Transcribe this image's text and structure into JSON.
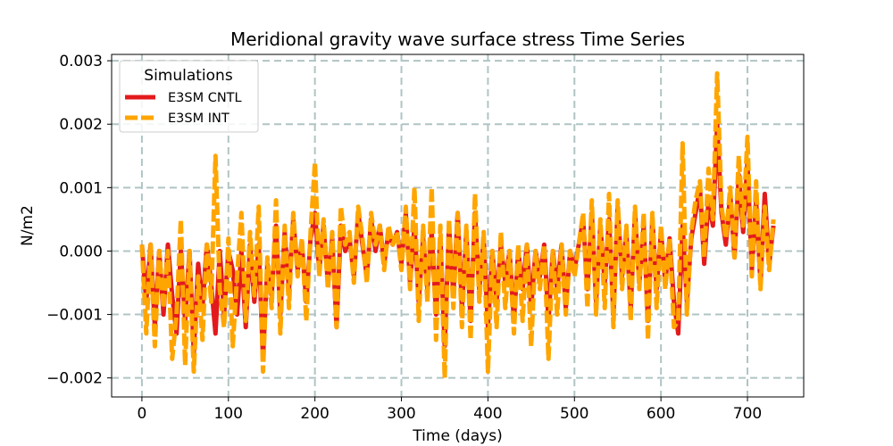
{
  "chart_data": {
    "type": "line",
    "title": "Meridional gravity wave surface stress Time Series",
    "xlabel": "Time (days)",
    "ylabel": "N/m2",
    "xlim": [
      -35,
      765
    ],
    "ylim": [
      -0.0023,
      0.0031
    ],
    "x_ticks": [
      0,
      100,
      200,
      300,
      400,
      500,
      600,
      700
    ],
    "x_tick_labels": [
      "0",
      "100",
      "200",
      "300",
      "400",
      "500",
      "600",
      "700"
    ],
    "y_ticks": [
      -0.002,
      -0.001,
      0.0,
      0.001,
      0.002,
      0.003
    ],
    "y_tick_labels": [
      "−0.002",
      "−0.001",
      "0.000",
      "0.001",
      "0.002",
      "0.003"
    ],
    "grid": true,
    "legend": {
      "title": "Simulations",
      "position": "top-left",
      "entries": [
        {
          "label": "E3SM CNTL",
          "color": "#e31a1c",
          "style": "solid"
        },
        {
          "label": "E3SM INT",
          "color": "#ffa500",
          "style": "dashed"
        }
      ]
    },
    "series": [
      {
        "name": "E3SM CNTL",
        "color": "#e31a1c",
        "style": "solid",
        "x": [
          0,
          5,
          10,
          15,
          20,
          25,
          30,
          35,
          40,
          45,
          50,
          55,
          60,
          65,
          70,
          75,
          80,
          85,
          90,
          95,
          100,
          105,
          110,
          115,
          120,
          125,
          130,
          135,
          140,
          145,
          150,
          155,
          160,
          165,
          170,
          175,
          180,
          185,
          190,
          195,
          200,
          205,
          210,
          215,
          220,
          225,
          230,
          235,
          240,
          245,
          250,
          255,
          260,
          265,
          270,
          275,
          280,
          285,
          290,
          295,
          300,
          305,
          310,
          315,
          320,
          325,
          330,
          335,
          340,
          345,
          350,
          355,
          360,
          365,
          370,
          375,
          380,
          385,
          390,
          395,
          400,
          405,
          410,
          415,
          420,
          425,
          430,
          435,
          440,
          445,
          450,
          455,
          460,
          465,
          470,
          475,
          480,
          485,
          490,
          495,
          500,
          505,
          510,
          515,
          520,
          525,
          530,
          535,
          540,
          545,
          550,
          555,
          560,
          565,
          570,
          575,
          580,
          585,
          590,
          595,
          600,
          605,
          610,
          615,
          620,
          625,
          630,
          635,
          640,
          645,
          650,
          655,
          660,
          665,
          670,
          675,
          680,
          685,
          690,
          695,
          700,
          705,
          710,
          715,
          720,
          725,
          730
        ],
        "y": [
          0.0001,
          -0.0008,
          0.0001,
          -0.0012,
          0.0,
          -0.001,
          0.0001,
          -0.0007,
          -0.0013,
          0.0,
          -0.0011,
          0.0,
          -0.0016,
          -0.0002,
          -0.0009,
          0.0001,
          -0.0005,
          -0.0013,
          0.0,
          -0.001,
          0.0,
          -0.0003,
          -0.001,
          0.0,
          -0.0012,
          0.0001,
          -0.0008,
          0.0001,
          -0.0017,
          -0.0002,
          -0.0007,
          0.0004,
          -0.001,
          0.0003,
          -0.0006,
          0.0005,
          -0.0003,
          0.0001,
          -0.0008,
          0.0002,
          0.0006,
          -0.0003,
          0.0004,
          -0.0005,
          0.0002,
          -0.0012,
          0.0004,
          0.0,
          0.0002,
          -0.0004,
          0.0006,
          0.0001,
          -0.0004,
          0.0005,
          0.0,
          0.0004,
          -0.0002,
          0.0003,
          0.0001,
          0.0003,
          -0.0002,
          0.0006,
          -0.0005,
          0.0004,
          -0.0008,
          0.0002,
          -0.0006,
          0.0003,
          -0.001,
          0.0002,
          -0.0015,
          0.0004,
          -0.0007,
          0.0006,
          -0.0009,
          0.0003,
          -0.0011,
          0.0006,
          -0.0006,
          0.0002,
          -0.0012,
          0.0,
          -0.0008,
          0.0001,
          -0.0005,
          0.0,
          -0.0011,
          0.0,
          -0.0006,
          0.0001,
          -0.0009,
          0.0,
          -0.0004,
          0.0001,
          -0.0011,
          0.0,
          -0.0006,
          0.0001,
          -0.0009,
          0.0,
          -0.0003,
          0.0001,
          0.0005,
          -0.0006,
          0.0006,
          -0.0008,
          0.0004,
          -0.0005,
          0.0005,
          -0.001,
          0.0007,
          -0.0004,
          0.0003,
          -0.0009,
          0.0006,
          -0.0005,
          0.0004,
          -0.0011,
          0.0005,
          -0.0006,
          0.0003,
          -0.0005,
          0.0002,
          -0.0008,
          -0.0013,
          0.0004,
          -0.0008,
          0.0002,
          0.0006,
          0.001,
          -0.0002,
          0.0008,
          0.0004,
          0.002,
          0.0006,
          0.0001,
          0.0009,
          -0.0001,
          0.0012,
          0.0003,
          0.0014,
          -0.0003,
          0.0008,
          -0.0005,
          0.0009,
          -0.0002,
          0.0004
        ]
      },
      {
        "name": "E3SM INT",
        "color": "#ffa500",
        "style": "dashed",
        "x": [
          0,
          5,
          10,
          15,
          20,
          25,
          30,
          35,
          40,
          45,
          50,
          55,
          60,
          65,
          70,
          75,
          80,
          85,
          90,
          95,
          100,
          105,
          110,
          115,
          120,
          125,
          130,
          135,
          140,
          145,
          150,
          155,
          160,
          165,
          170,
          175,
          180,
          185,
          190,
          195,
          200,
          205,
          210,
          215,
          220,
          225,
          230,
          235,
          240,
          245,
          250,
          255,
          260,
          265,
          270,
          275,
          280,
          285,
          290,
          295,
          300,
          305,
          310,
          315,
          320,
          325,
          330,
          335,
          340,
          345,
          350,
          355,
          360,
          365,
          370,
          375,
          380,
          385,
          390,
          395,
          400,
          405,
          410,
          415,
          420,
          425,
          430,
          435,
          440,
          445,
          450,
          455,
          460,
          465,
          470,
          475,
          480,
          485,
          490,
          495,
          500,
          505,
          510,
          515,
          520,
          525,
          530,
          535,
          540,
          545,
          550,
          555,
          560,
          565,
          570,
          575,
          580,
          585,
          590,
          595,
          600,
          605,
          610,
          615,
          620,
          625,
          630,
          635,
          640,
          645,
          650,
          655,
          660,
          665,
          670,
          675,
          680,
          685,
          690,
          695,
          700,
          705,
          710,
          715,
          720,
          725,
          730
        ],
        "y": [
          0.0001,
          -0.0013,
          0.0001,
          -0.0015,
          0.0,
          -0.0009,
          0.0,
          -0.0017,
          -0.001,
          0.0005,
          -0.0018,
          0.0,
          -0.0019,
          -0.0004,
          -0.0014,
          0.0001,
          -0.0008,
          0.0015,
          -0.0006,
          -0.0012,
          0.0002,
          -0.0015,
          -0.0004,
          0.0006,
          -0.0011,
          0.0003,
          -0.0007,
          0.0007,
          -0.0019,
          -0.0001,
          -0.0009,
          0.0008,
          -0.0013,
          0.0004,
          -0.0009,
          0.0006,
          -0.0004,
          0.0002,
          -0.0011,
          0.0003,
          0.0014,
          -0.0004,
          0.0005,
          -0.0006,
          0.0003,
          -0.0012,
          0.0007,
          0.0001,
          0.0003,
          -0.0005,
          0.0007,
          0.0002,
          -0.0005,
          0.0006,
          0.0001,
          0.0004,
          -0.0003,
          0.0004,
          0.0001,
          0.0003,
          -0.0003,
          0.0007,
          -0.0006,
          0.001,
          -0.0011,
          0.0004,
          -0.0008,
          0.001,
          -0.0014,
          0.0004,
          -0.002,
          0.0005,
          -0.0009,
          0.0006,
          -0.0012,
          0.0004,
          -0.0014,
          0.0009,
          -0.0008,
          0.0003,
          -0.0019,
          0.0,
          -0.0012,
          0.0003,
          -0.0009,
          0.0,
          -0.0013,
          0.0001,
          -0.0011,
          0.0001,
          -0.0015,
          0.0,
          -0.0006,
          0.0001,
          -0.0017,
          0.0,
          -0.001,
          0.0001,
          -0.001,
          0.0,
          -0.0004,
          0.0001,
          0.0006,
          -0.0009,
          0.0008,
          -0.001,
          0.0005,
          -0.0009,
          0.0009,
          -0.0012,
          0.0008,
          -0.0006,
          0.0004,
          -0.0011,
          0.0007,
          -0.0006,
          0.0006,
          -0.0014,
          0.0006,
          -0.0009,
          0.0004,
          -0.0006,
          0.0002,
          -0.0012,
          -0.0011,
          0.0017,
          -0.001,
          0.0003,
          0.0008,
          0.0011,
          -0.0001,
          0.0013,
          0.0005,
          0.0028,
          0.0007,
          0.0002,
          0.001,
          -0.0001,
          0.0015,
          0.0004,
          0.0018,
          -0.0004,
          0.0011,
          -0.0006,
          0.0007,
          -0.0003,
          0.0005
        ]
      }
    ]
  }
}
